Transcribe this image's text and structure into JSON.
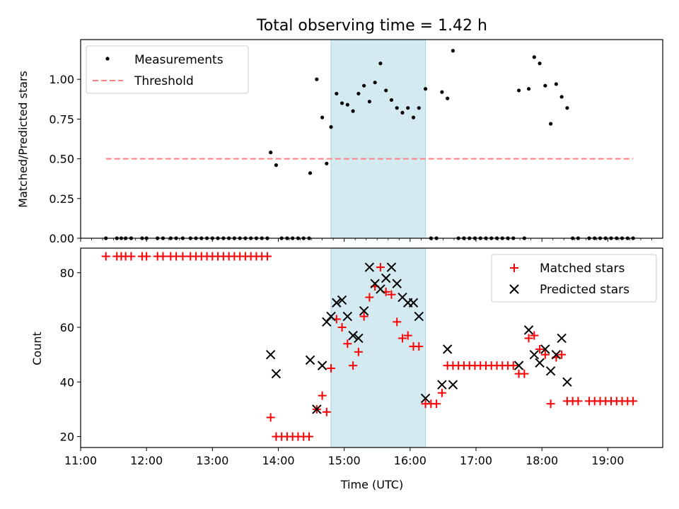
{
  "chart_data": [
    {
      "type": "scatter",
      "title": "Total observing time = 1.42 h",
      "xlabel": "",
      "ylabel": "Matched/Predicted stars",
      "xlim": [
        "11:00",
        "19:50"
      ],
      "ylim": [
        0,
        1.25
      ],
      "yticks": [
        "0.00",
        "0.25",
        "0.50",
        "0.75",
        "1.00"
      ],
      "highlight_span": {
        "from": "14:48",
        "to": "16:14",
        "color": "#d4eaf1"
      },
      "legend": {
        "position": "upper-left",
        "entries": [
          "Measurements",
          "Threshold"
        ]
      },
      "series": [
        {
          "name": "Measurements",
          "marker": "dot",
          "color": "#000000",
          "points": [
            [
              "11:23",
              0
            ],
            [
              "11:33",
              0
            ],
            [
              "11:37",
              0
            ],
            [
              "11:41",
              0
            ],
            [
              "11:46",
              0
            ],
            [
              "11:56",
              0
            ],
            [
              "12:00",
              0
            ],
            [
              "12:10",
              0
            ],
            [
              "12:15",
              0
            ],
            [
              "12:22",
              0
            ],
            [
              "12:27",
              0
            ],
            [
              "12:33",
              0
            ],
            [
              "12:40",
              0
            ],
            [
              "12:45",
              0
            ],
            [
              "12:50",
              0
            ],
            [
              "12:55",
              0
            ],
            [
              "13:00",
              0
            ],
            [
              "13:05",
              0
            ],
            [
              "13:10",
              0
            ],
            [
              "13:15",
              0
            ],
            [
              "13:20",
              0
            ],
            [
              "13:25",
              0
            ],
            [
              "13:30",
              0
            ],
            [
              "13:35",
              0
            ],
            [
              "13:40",
              0
            ],
            [
              "13:45",
              0
            ],
            [
              "13:50",
              0
            ],
            [
              "13:53",
              0.54
            ],
            [
              "13:58",
              0.46
            ],
            [
              "14:03",
              0
            ],
            [
              "14:08",
              0
            ],
            [
              "14:13",
              0
            ],
            [
              "14:18",
              0
            ],
            [
              "14:23",
              0
            ],
            [
              "14:28",
              0
            ],
            [
              "14:29",
              0.41
            ],
            [
              "14:35",
              1.0
            ],
            [
              "14:40",
              0.76
            ],
            [
              "14:44",
              0.47
            ],
            [
              "14:48",
              0.7
            ],
            [
              "14:53",
              0.91
            ],
            [
              "14:58",
              0.85
            ],
            [
              "15:03",
              0.84
            ],
            [
              "15:08",
              0.8
            ],
            [
              "15:13",
              0.91
            ],
            [
              "15:18",
              0.96
            ],
            [
              "15:23",
              0.86
            ],
            [
              "15:28",
              0.98
            ],
            [
              "15:33",
              1.1
            ],
            [
              "15:38",
              0.93
            ],
            [
              "15:43",
              0.87
            ],
            [
              "15:48",
              0.82
            ],
            [
              "15:53",
              0.79
            ],
            [
              "15:58",
              0.82
            ],
            [
              "16:03",
              0.76
            ],
            [
              "16:08",
              0.82
            ],
            [
              "16:14",
              0.94
            ],
            [
              "16:19",
              0
            ],
            [
              "16:24",
              0
            ],
            [
              "16:29",
              0.92
            ],
            [
              "16:34",
              0.88
            ],
            [
              "16:39",
              1.18
            ],
            [
              "16:44",
              0
            ],
            [
              "16:49",
              0
            ],
            [
              "16:54",
              0
            ],
            [
              "16:59",
              0
            ],
            [
              "17:04",
              0
            ],
            [
              "17:09",
              0
            ],
            [
              "17:14",
              0
            ],
            [
              "17:19",
              0
            ],
            [
              "17:24",
              0
            ],
            [
              "17:29",
              0
            ],
            [
              "17:34",
              0
            ],
            [
              "17:39",
              0.93
            ],
            [
              "17:44",
              0
            ],
            [
              "17:48",
              0.94
            ],
            [
              "17:53",
              1.14
            ],
            [
              "17:58",
              1.1
            ],
            [
              "18:03",
              0.96
            ],
            [
              "18:08",
              0.72
            ],
            [
              "18:13",
              0.97
            ],
            [
              "18:18",
              0.89
            ],
            [
              "18:23",
              0.82
            ],
            [
              "18:28",
              0
            ],
            [
              "18:33",
              0
            ],
            [
              "18:43",
              0
            ],
            [
              "18:48",
              0
            ],
            [
              "18:53",
              0
            ],
            [
              "18:58",
              0
            ],
            [
              "19:03",
              0
            ],
            [
              "19:08",
              0
            ],
            [
              "19:13",
              0
            ],
            [
              "19:18",
              0
            ],
            [
              "19:23",
              0
            ]
          ]
        },
        {
          "name": "Threshold",
          "marker": "dashed-line",
          "color": "#ff7f7f",
          "points": [
            [
              "11:23",
              0.5
            ],
            [
              "19:23",
              0.5
            ]
          ]
        }
      ]
    },
    {
      "type": "scatter",
      "title": "",
      "xlabel": "Time (UTC)",
      "ylabel": "Count",
      "xlim": [
        "11:00",
        "19:50"
      ],
      "ylim": [
        16,
        89
      ],
      "xticks": [
        "11:00",
        "12:00",
        "13:00",
        "14:00",
        "15:00",
        "16:00",
        "17:00",
        "18:00",
        "19:00"
      ],
      "yticks": [
        "20",
        "40",
        "60",
        "80"
      ],
      "highlight_span": {
        "from": "14:48",
        "to": "16:14",
        "color": "#d4eaf1"
      },
      "legend": {
        "position": "upper-right",
        "entries": [
          "Matched stars",
          "Predicted stars"
        ]
      },
      "series": [
        {
          "name": "Matched stars",
          "marker": "plus",
          "color": "#ff0000",
          "points": [
            [
              "11:23",
              86
            ],
            [
              "11:33",
              86
            ],
            [
              "11:37",
              86
            ],
            [
              "11:41",
              86
            ],
            [
              "11:46",
              86
            ],
            [
              "11:56",
              86
            ],
            [
              "12:00",
              86
            ],
            [
              "12:10",
              86
            ],
            [
              "12:15",
              86
            ],
            [
              "12:22",
              86
            ],
            [
              "12:27",
              86
            ],
            [
              "12:33",
              86
            ],
            [
              "12:40",
              86
            ],
            [
              "12:45",
              86
            ],
            [
              "12:50",
              86
            ],
            [
              "12:55",
              86
            ],
            [
              "13:00",
              86
            ],
            [
              "13:05",
              86
            ],
            [
              "13:10",
              86
            ],
            [
              "13:15",
              86
            ],
            [
              "13:20",
              86
            ],
            [
              "13:25",
              86
            ],
            [
              "13:30",
              86
            ],
            [
              "13:35",
              86
            ],
            [
              "13:40",
              86
            ],
            [
              "13:45",
              86
            ],
            [
              "13:50",
              86
            ],
            [
              "13:53",
              27
            ],
            [
              "13:58",
              20
            ],
            [
              "14:03",
              20
            ],
            [
              "14:08",
              20
            ],
            [
              "14:13",
              20
            ],
            [
              "14:18",
              20
            ],
            [
              "14:23",
              20
            ],
            [
              "14:28",
              20
            ],
            [
              "14:35",
              30
            ],
            [
              "14:40",
              35
            ],
            [
              "14:44",
              29
            ],
            [
              "14:48",
              45
            ],
            [
              "14:53",
              63
            ],
            [
              "14:58",
              60
            ],
            [
              "15:03",
              54
            ],
            [
              "15:08",
              46
            ],
            [
              "15:13",
              51
            ],
            [
              "15:18",
              64
            ],
            [
              "15:23",
              71
            ],
            [
              "15:28",
              75
            ],
            [
              "15:33",
              82
            ],
            [
              "15:38",
              73
            ],
            [
              "15:43",
              72
            ],
            [
              "15:48",
              62
            ],
            [
              "15:53",
              56
            ],
            [
              "15:58",
              57
            ],
            [
              "16:03",
              53
            ],
            [
              "16:08",
              53
            ],
            [
              "16:14",
              32
            ],
            [
              "16:19",
              32
            ],
            [
              "16:24",
              32
            ],
            [
              "16:29",
              36
            ],
            [
              "16:34",
              46
            ],
            [
              "16:39",
              46
            ],
            [
              "16:44",
              46
            ],
            [
              "16:49",
              46
            ],
            [
              "16:54",
              46
            ],
            [
              "16:59",
              46
            ],
            [
              "17:04",
              46
            ],
            [
              "17:09",
              46
            ],
            [
              "17:14",
              46
            ],
            [
              "17:19",
              46
            ],
            [
              "17:24",
              46
            ],
            [
              "17:29",
              46
            ],
            [
              "17:34",
              46
            ],
            [
              "17:39",
              43
            ],
            [
              "17:44",
              43
            ],
            [
              "17:48",
              56
            ],
            [
              "17:53",
              57
            ],
            [
              "17:58",
              52
            ],
            [
              "18:03",
              50
            ],
            [
              "18:08",
              32
            ],
            [
              "18:13",
              49
            ],
            [
              "18:18",
              50
            ],
            [
              "18:23",
              33
            ],
            [
              "18:28",
              33
            ],
            [
              "18:33",
              33
            ],
            [
              "18:43",
              33
            ],
            [
              "18:48",
              33
            ],
            [
              "18:53",
              33
            ],
            [
              "18:58",
              33
            ],
            [
              "19:03",
              33
            ],
            [
              "19:08",
              33
            ],
            [
              "19:13",
              33
            ],
            [
              "19:18",
              33
            ],
            [
              "19:23",
              33
            ]
          ]
        },
        {
          "name": "Predicted stars",
          "marker": "x",
          "color": "#000000",
          "points": [
            [
              "13:53",
              50
            ],
            [
              "13:58",
              43
            ],
            [
              "14:29",
              48
            ],
            [
              "14:35",
              30
            ],
            [
              "14:40",
              46
            ],
            [
              "14:44",
              62
            ],
            [
              "14:48",
              64
            ],
            [
              "14:53",
              69
            ],
            [
              "14:58",
              70
            ],
            [
              "15:03",
              64
            ],
            [
              "15:08",
              57
            ],
            [
              "15:13",
              56
            ],
            [
              "15:18",
              66
            ],
            [
              "15:23",
              82
            ],
            [
              "15:28",
              76
            ],
            [
              "15:33",
              74
            ],
            [
              "15:38",
              78
            ],
            [
              "15:43",
              82
            ],
            [
              "15:48",
              76
            ],
            [
              "15:53",
              71
            ],
            [
              "15:58",
              69
            ],
            [
              "16:03",
              69
            ],
            [
              "16:08",
              64
            ],
            [
              "16:14",
              34
            ],
            [
              "16:29",
              39
            ],
            [
              "16:34",
              52
            ],
            [
              "16:39",
              39
            ],
            [
              "17:39",
              46
            ],
            [
              "17:48",
              59
            ],
            [
              "17:53",
              50
            ],
            [
              "17:58",
              47
            ],
            [
              "18:03",
              52
            ],
            [
              "18:08",
              44
            ],
            [
              "18:13",
              50
            ],
            [
              "18:18",
              56
            ],
            [
              "18:23",
              40
            ]
          ]
        }
      ]
    }
  ]
}
